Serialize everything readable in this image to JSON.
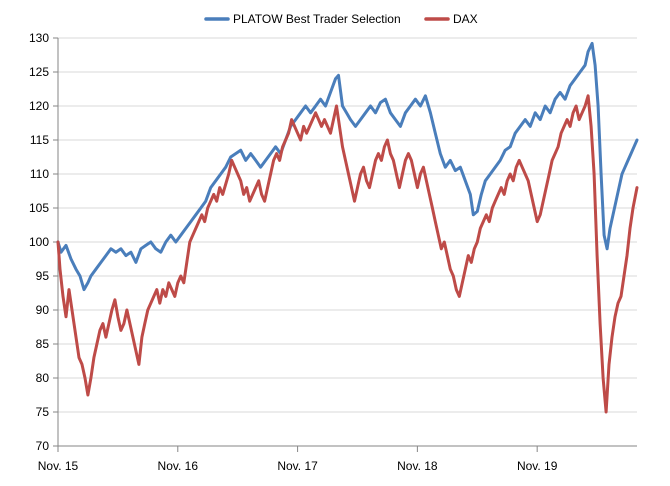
{
  "chart_data": {
    "type": "line",
    "title": "",
    "xlabel": "",
    "ylabel": "",
    "ylim": [
      70,
      130
    ],
    "yticks": [
      70,
      75,
      80,
      85,
      90,
      95,
      100,
      105,
      110,
      115,
      120,
      125,
      130
    ],
    "xticks": [
      "Nov. 15",
      "Nov. 16",
      "Nov. 17",
      "Nov. 18",
      "Nov. 19"
    ],
    "x_domain_months": [
      0,
      58
    ],
    "grid": "horizontal",
    "legend_position": "top-center",
    "series": [
      {
        "name": "PLATOW Best Trader Selection",
        "color": "#4a7ebb",
        "points": [
          [
            0,
            100
          ],
          [
            0.3,
            98.5
          ],
          [
            0.8,
            99.5
          ],
          [
            1.3,
            97.5
          ],
          [
            1.8,
            96
          ],
          [
            2.2,
            95
          ],
          [
            2.6,
            93
          ],
          [
            3.0,
            94
          ],
          [
            3.3,
            95
          ],
          [
            3.8,
            96
          ],
          [
            4.3,
            97
          ],
          [
            4.8,
            98
          ],
          [
            5.3,
            99
          ],
          [
            5.8,
            98.5
          ],
          [
            6.3,
            99
          ],
          [
            6.8,
            98
          ],
          [
            7.3,
            98.5
          ],
          [
            7.8,
            97
          ],
          [
            8.3,
            99
          ],
          [
            8.8,
            99.5
          ],
          [
            9.3,
            100
          ],
          [
            9.8,
            99
          ],
          [
            10.3,
            98.5
          ],
          [
            10.8,
            100
          ],
          [
            11.3,
            101
          ],
          [
            11.8,
            100
          ],
          [
            12.3,
            101
          ],
          [
            12.8,
            102
          ],
          [
            13.3,
            103
          ],
          [
            13.8,
            104
          ],
          [
            14.3,
            105
          ],
          [
            14.8,
            106
          ],
          [
            15.3,
            108
          ],
          [
            15.8,
            109
          ],
          [
            16.3,
            110
          ],
          [
            16.8,
            111
          ],
          [
            17.3,
            112.5
          ],
          [
            17.8,
            113
          ],
          [
            18.3,
            113.5
          ],
          [
            18.8,
            112
          ],
          [
            19.3,
            113
          ],
          [
            19.8,
            112
          ],
          [
            20.3,
            111
          ],
          [
            20.8,
            112
          ],
          [
            21.3,
            113
          ],
          [
            21.8,
            114
          ],
          [
            22.3,
            113
          ],
          [
            22.8,
            115
          ],
          [
            23.3,
            117
          ],
          [
            23.8,
            118
          ],
          [
            24.3,
            119
          ],
          [
            24.8,
            120
          ],
          [
            25.3,
            119
          ],
          [
            25.8,
            120
          ],
          [
            26.3,
            121
          ],
          [
            26.8,
            120
          ],
          [
            27.3,
            122
          ],
          [
            27.8,
            124
          ],
          [
            28.1,
            124.5
          ],
          [
            28.5,
            120
          ],
          [
            28.9,
            119
          ],
          [
            29.3,
            118
          ],
          [
            29.8,
            117
          ],
          [
            30.3,
            118
          ],
          [
            30.8,
            119
          ],
          [
            31.3,
            120
          ],
          [
            31.8,
            119
          ],
          [
            32.3,
            120.5
          ],
          [
            32.8,
            121
          ],
          [
            33.3,
            119
          ],
          [
            33.8,
            118
          ],
          [
            34.3,
            117
          ],
          [
            34.8,
            119
          ],
          [
            35.3,
            120
          ],
          [
            35.8,
            121
          ],
          [
            36.3,
            120
          ],
          [
            36.8,
            121.5
          ],
          [
            37.3,
            119
          ],
          [
            37.8,
            116
          ],
          [
            38.3,
            113
          ],
          [
            38.8,
            111
          ],
          [
            39.3,
            112
          ],
          [
            39.8,
            110.5
          ],
          [
            40.3,
            111
          ],
          [
            40.8,
            109
          ],
          [
            41.3,
            107
          ],
          [
            41.6,
            104
          ],
          [
            42.0,
            104.5
          ],
          [
            42.4,
            107
          ],
          [
            42.8,
            109
          ],
          [
            43.3,
            110
          ],
          [
            43.8,
            111
          ],
          [
            44.3,
            112
          ],
          [
            44.8,
            113.5
          ],
          [
            45.3,
            114
          ],
          [
            45.8,
            116
          ],
          [
            46.3,
            117
          ],
          [
            46.8,
            118
          ],
          [
            47.3,
            117
          ],
          [
            47.8,
            119
          ],
          [
            48.3,
            118
          ],
          [
            48.8,
            120
          ],
          [
            49.3,
            119
          ],
          [
            49.8,
            121
          ],
          [
            50.3,
            122
          ],
          [
            50.8,
            121
          ],
          [
            51.3,
            123
          ],
          [
            51.8,
            124
          ],
          [
            52.3,
            125
          ],
          [
            52.8,
            126
          ],
          [
            53.1,
            128
          ],
          [
            53.5,
            129.2
          ],
          [
            53.8,
            126
          ],
          [
            54.1,
            120
          ],
          [
            54.4,
            110
          ],
          [
            54.7,
            101
          ],
          [
            55.0,
            99
          ],
          [
            55.3,
            102
          ],
          [
            55.6,
            104
          ],
          [
            55.9,
            106
          ],
          [
            56.2,
            108
          ],
          [
            56.5,
            110
          ],
          [
            56.8,
            111
          ],
          [
            57.1,
            112
          ],
          [
            57.4,
            113
          ],
          [
            57.7,
            114
          ],
          [
            58,
            115
          ]
        ]
      },
      {
        "name": "DAX",
        "color": "#be4b48",
        "points": [
          [
            0,
            100
          ],
          [
            0.2,
            96
          ],
          [
            0.5,
            92
          ],
          [
            0.8,
            89
          ],
          [
            1.1,
            93
          ],
          [
            1.4,
            90
          ],
          [
            1.8,
            86
          ],
          [
            2.1,
            83
          ],
          [
            2.4,
            82
          ],
          [
            2.7,
            80
          ],
          [
            3.0,
            77.5
          ],
          [
            3.3,
            80
          ],
          [
            3.6,
            83
          ],
          [
            3.9,
            85
          ],
          [
            4.2,
            87
          ],
          [
            4.5,
            88
          ],
          [
            4.8,
            86
          ],
          [
            5.1,
            88
          ],
          [
            5.4,
            90
          ],
          [
            5.7,
            91.5
          ],
          [
            6.0,
            89
          ],
          [
            6.3,
            87
          ],
          [
            6.6,
            88
          ],
          [
            6.9,
            90
          ],
          [
            7.2,
            88
          ],
          [
            7.5,
            86
          ],
          [
            7.8,
            84
          ],
          [
            8.1,
            82
          ],
          [
            8.4,
            86
          ],
          [
            8.7,
            88
          ],
          [
            9.0,
            90
          ],
          [
            9.3,
            91
          ],
          [
            9.6,
            92
          ],
          [
            9.9,
            93
          ],
          [
            10.2,
            91
          ],
          [
            10.5,
            93
          ],
          [
            10.8,
            92
          ],
          [
            11.1,
            94
          ],
          [
            11.4,
            93
          ],
          [
            11.7,
            92
          ],
          [
            12.0,
            94
          ],
          [
            12.3,
            95
          ],
          [
            12.6,
            94
          ],
          [
            12.9,
            97
          ],
          [
            13.2,
            100
          ],
          [
            13.5,
            101
          ],
          [
            13.8,
            102
          ],
          [
            14.1,
            103
          ],
          [
            14.4,
            104
          ],
          [
            14.7,
            103
          ],
          [
            15.0,
            105
          ],
          [
            15.3,
            106
          ],
          [
            15.6,
            107
          ],
          [
            15.9,
            106
          ],
          [
            16.2,
            108
          ],
          [
            16.5,
            107
          ],
          [
            16.8,
            108.5
          ],
          [
            17.1,
            110
          ],
          [
            17.4,
            112
          ],
          [
            17.7,
            111
          ],
          [
            18.0,
            110
          ],
          [
            18.3,
            109
          ],
          [
            18.6,
            107
          ],
          [
            18.9,
            108
          ],
          [
            19.2,
            106
          ],
          [
            19.5,
            107
          ],
          [
            19.8,
            108
          ],
          [
            20.1,
            109
          ],
          [
            20.4,
            107
          ],
          [
            20.7,
            106
          ],
          [
            21.0,
            108
          ],
          [
            21.3,
            110
          ],
          [
            21.6,
            112
          ],
          [
            21.9,
            113
          ],
          [
            22.2,
            112
          ],
          [
            22.5,
            114
          ],
          [
            22.8,
            115
          ],
          [
            23.1,
            116
          ],
          [
            23.4,
            118
          ],
          [
            23.7,
            117
          ],
          [
            24.0,
            116
          ],
          [
            24.3,
            115
          ],
          [
            24.6,
            117
          ],
          [
            24.9,
            116
          ],
          [
            25.2,
            117
          ],
          [
            25.5,
            118
          ],
          [
            25.8,
            119
          ],
          [
            26.1,
            118
          ],
          [
            26.4,
            117
          ],
          [
            26.7,
            118
          ],
          [
            27.0,
            117
          ],
          [
            27.3,
            116
          ],
          [
            27.6,
            118
          ],
          [
            27.9,
            120
          ],
          [
            28.2,
            117
          ],
          [
            28.5,
            114
          ],
          [
            28.8,
            112
          ],
          [
            29.1,
            110
          ],
          [
            29.4,
            108
          ],
          [
            29.7,
            106
          ],
          [
            30.0,
            108
          ],
          [
            30.3,
            110
          ],
          [
            30.6,
            111
          ],
          [
            30.9,
            109
          ],
          [
            31.2,
            108
          ],
          [
            31.5,
            110
          ],
          [
            31.8,
            112
          ],
          [
            32.1,
            113
          ],
          [
            32.4,
            112
          ],
          [
            32.7,
            114
          ],
          [
            33.0,
            115
          ],
          [
            33.3,
            113
          ],
          [
            33.6,
            112
          ],
          [
            33.9,
            110
          ],
          [
            34.2,
            108
          ],
          [
            34.5,
            110
          ],
          [
            34.8,
            112
          ],
          [
            35.1,
            113
          ],
          [
            35.4,
            112
          ],
          [
            35.7,
            110
          ],
          [
            36.0,
            108
          ],
          [
            36.3,
            110
          ],
          [
            36.6,
            111
          ],
          [
            36.9,
            109
          ],
          [
            37.2,
            107
          ],
          [
            37.5,
            105
          ],
          [
            37.8,
            103
          ],
          [
            38.1,
            101
          ],
          [
            38.4,
            99
          ],
          [
            38.7,
            100
          ],
          [
            39.0,
            98
          ],
          [
            39.3,
            96
          ],
          [
            39.6,
            95
          ],
          [
            39.9,
            93
          ],
          [
            40.2,
            92
          ],
          [
            40.5,
            94
          ],
          [
            40.8,
            96
          ],
          [
            41.1,
            98
          ],
          [
            41.4,
            97
          ],
          [
            41.7,
            99
          ],
          [
            42.0,
            100
          ],
          [
            42.3,
            102
          ],
          [
            42.6,
            103
          ],
          [
            42.9,
            104
          ],
          [
            43.2,
            103
          ],
          [
            43.5,
            105
          ],
          [
            43.8,
            106
          ],
          [
            44.1,
            107
          ],
          [
            44.4,
            108
          ],
          [
            44.7,
            107
          ],
          [
            45.0,
            109
          ],
          [
            45.3,
            110
          ],
          [
            45.6,
            109
          ],
          [
            45.9,
            111
          ],
          [
            46.2,
            112
          ],
          [
            46.5,
            111
          ],
          [
            46.8,
            110
          ],
          [
            47.1,
            109
          ],
          [
            47.4,
            107
          ],
          [
            47.7,
            105
          ],
          [
            48.0,
            103
          ],
          [
            48.3,
            104
          ],
          [
            48.6,
            106
          ],
          [
            48.9,
            108
          ],
          [
            49.2,
            110
          ],
          [
            49.5,
            112
          ],
          [
            49.8,
            113
          ],
          [
            50.1,
            114
          ],
          [
            50.4,
            116
          ],
          [
            50.7,
            117
          ],
          [
            51.0,
            118
          ],
          [
            51.3,
            117
          ],
          [
            51.6,
            119
          ],
          [
            51.9,
            120
          ],
          [
            52.2,
            118
          ],
          [
            52.5,
            119
          ],
          [
            52.8,
            120
          ],
          [
            53.1,
            121.5
          ],
          [
            53.4,
            117
          ],
          [
            53.7,
            110
          ],
          [
            54.0,
            98
          ],
          [
            54.3,
            88
          ],
          [
            54.6,
            80
          ],
          [
            54.9,
            75
          ],
          [
            55.2,
            82
          ],
          [
            55.5,
            86
          ],
          [
            55.8,
            89
          ],
          [
            56.1,
            91
          ],
          [
            56.4,
            92
          ],
          [
            56.7,
            95
          ],
          [
            57.0,
            98
          ],
          [
            57.3,
            102
          ],
          [
            57.6,
            105
          ],
          [
            58,
            108
          ]
        ]
      }
    ]
  }
}
